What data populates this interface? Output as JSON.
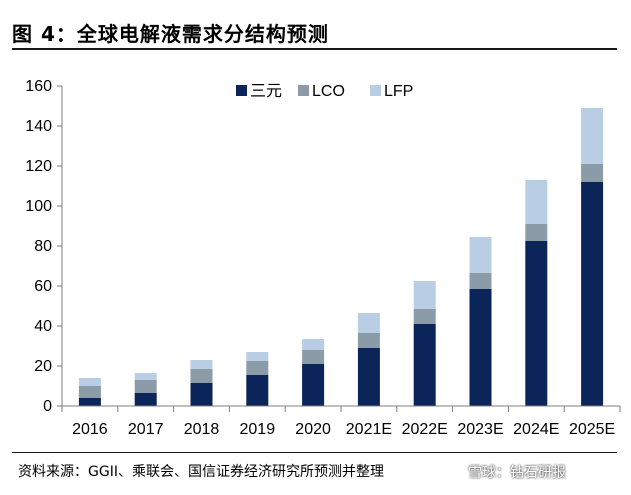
{
  "header": {
    "title": "图 4：全球电解液需求分结构预测"
  },
  "footer": {
    "source": "资料来源：GGII、乘联会、国信证券经济研究所预测并整理",
    "watermark": "雪球：钻石研报"
  },
  "colors": {
    "ternary": "#0b2459",
    "lco": "#8c9ba8",
    "lfp": "#b9cde4"
  },
  "chart_data": {
    "type": "bar",
    "stacked": true,
    "categories": [
      "2016",
      "2017",
      "2018",
      "2019",
      "2020",
      "2021E",
      "2022E",
      "2023E",
      "2024E",
      "2025E"
    ],
    "series": [
      {
        "name": "三元",
        "values": [
          4,
          6.5,
          11.5,
          15.5,
          21,
          29,
          41,
          58.5,
          82.5,
          112
        ]
      },
      {
        "name": "LCO",
        "values": [
          6,
          6.5,
          7,
          7,
          7,
          7.5,
          7.5,
          8,
          8.5,
          9
        ]
      },
      {
        "name": "LFP",
        "values": [
          4,
          3.5,
          4.5,
          4.5,
          5.5,
          10,
          14,
          18,
          22,
          28
        ]
      }
    ],
    "ylim": [
      0,
      160
    ],
    "yticks": [
      0,
      20,
      40,
      60,
      80,
      100,
      120,
      140,
      160
    ],
    "legend": "top-center",
    "grid": false
  }
}
